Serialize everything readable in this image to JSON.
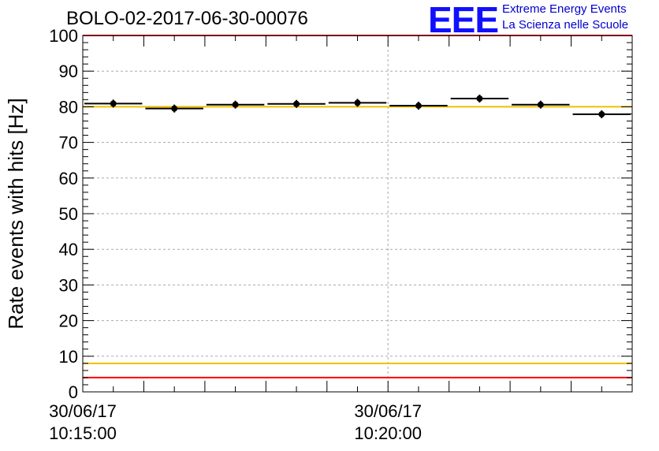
{
  "header": {
    "title": "BOLO-02-2017-06-30-00076",
    "logo_mark": "EEE",
    "logo_line1": "Extreme Energy Events",
    "logo_line2": "La Scienza nelle Scuole"
  },
  "chart_data": {
    "type": "scatter",
    "title": "BOLO-02-2017-06-30-00076",
    "xlabel": "",
    "ylabel": "Rate events with hits [Hz]",
    "ylim": [
      0,
      100
    ],
    "yticks": [
      0,
      10,
      20,
      30,
      40,
      50,
      60,
      70,
      80,
      90,
      100
    ],
    "xticks": [
      {
        "t": 0,
        "label_line1": "30/06/17",
        "label_line2": "10:15:00"
      },
      {
        "t": 300,
        "label_line1": "30/06/17",
        "label_line2": "10:20:00"
      }
    ],
    "xlim": [
      0,
      540
    ],
    "grid": true,
    "points": [
      {
        "x0": 0,
        "x1": 60,
        "y": 80.9
      },
      {
        "x0": 60,
        "x1": 120,
        "y": 79.5
      },
      {
        "x0": 120,
        "x1": 180,
        "y": 80.6
      },
      {
        "x0": 180,
        "x1": 240,
        "y": 80.8
      },
      {
        "x0": 240,
        "x1": 300,
        "y": 81.1
      },
      {
        "x0": 300,
        "x1": 360,
        "y": 80.3
      },
      {
        "x0": 360,
        "x1": 420,
        "y": 82.3
      },
      {
        "x0": 420,
        "x1": 480,
        "y": 80.6
      },
      {
        "x0": 480,
        "x1": 540,
        "y": 77.9
      }
    ],
    "reference_lines": [
      {
        "y": 100,
        "color": "#ff0000"
      },
      {
        "y": 4,
        "color": "#ff0000"
      },
      {
        "y": 80,
        "color": "#f0c000"
      },
      {
        "y": 8,
        "color": "#f0c000"
      }
    ]
  }
}
